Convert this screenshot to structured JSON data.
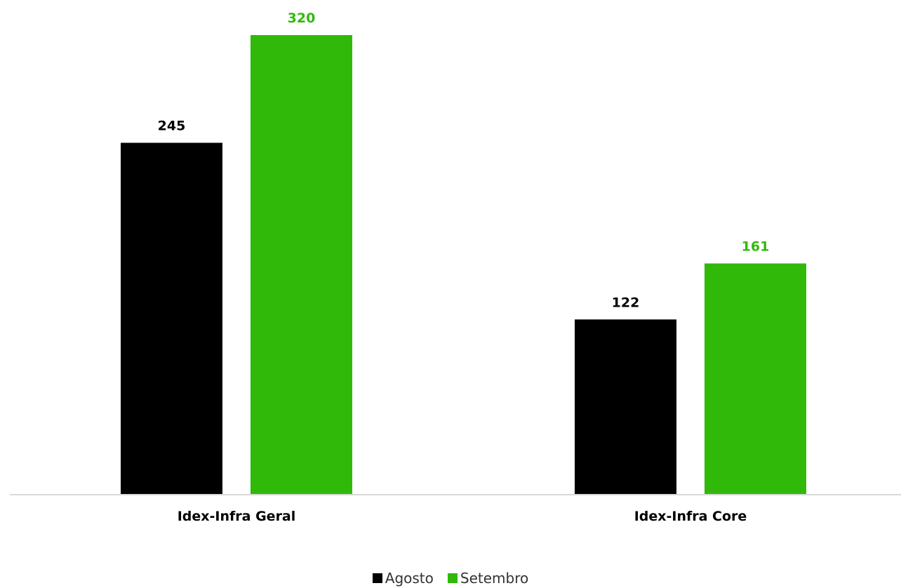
{
  "chart_data": {
    "type": "bar",
    "categories": [
      "Idex-Infra Geral",
      "Idex-Infra Core"
    ],
    "series": [
      {
        "name": "Agosto",
        "values": [
          245,
          122
        ],
        "color": "#000000",
        "label_color": "#000000"
      },
      {
        "name": "Setembro",
        "values": [
          320,
          161
        ],
        "color": "#31B90A",
        "label_color": "#31B90A"
      }
    ],
    "data_labels": true,
    "ylim": [
      0,
      320
    ],
    "grid": false,
    "legend_position": "bottom"
  }
}
